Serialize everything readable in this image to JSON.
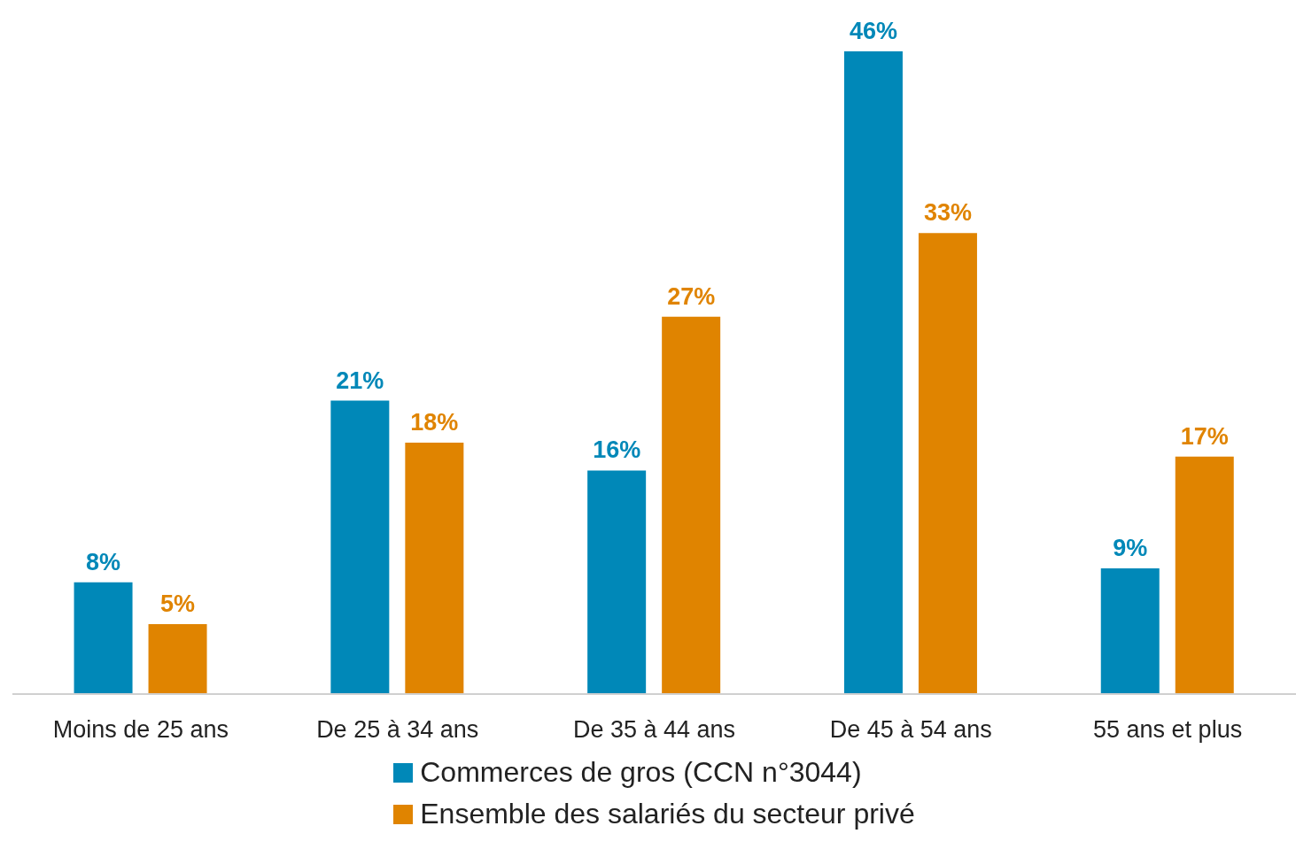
{
  "chart_data": {
    "type": "bar",
    "categories": [
      "Moins de 25 ans",
      "De 25 à 34 ans",
      "De 35 à 44 ans",
      "De 45 à 54 ans",
      "55 ans et plus"
    ],
    "series": [
      {
        "name": "Commerces de gros (CCN n°3044)",
        "color": "#0088b8",
        "values": [
          8,
          21,
          16,
          46,
          9
        ],
        "value_labels": [
          "8%",
          "21%",
          "16%",
          "46%",
          "9%"
        ]
      },
      {
        "name": "Ensemble des salariés du secteur privé",
        "color": "#e08400",
        "values": [
          5,
          18,
          27,
          33,
          17
        ],
        "value_labels": [
          "5%",
          "18%",
          "27%",
          "33%",
          "17%"
        ]
      }
    ],
    "legend": "bottom",
    "grid": false
  }
}
